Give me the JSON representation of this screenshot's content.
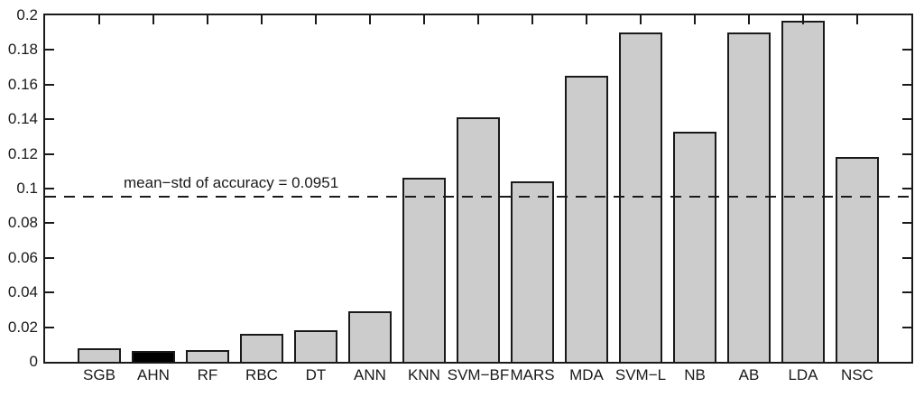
{
  "chart_data": {
    "type": "bar",
    "title": "",
    "xlabel": "",
    "ylabel": "",
    "categories": [
      "SGB",
      "AHN",
      "RF",
      "RBC",
      "DT",
      "ANN",
      "KNN",
      "SVM−BF",
      "MARS",
      "MDA",
      "SVM−L",
      "NB",
      "AB",
      "LDA",
      "NSC"
    ],
    "values": [
      0.008,
      0.006,
      0.007,
      0.016,
      0.018,
      0.029,
      0.106,
      0.141,
      0.104,
      0.165,
      0.19,
      0.133,
      0.19,
      0.197,
      0.118
    ],
    "bar_colors": [
      "#cccccc",
      "#000000",
      "#cccccc",
      "#cccccc",
      "#cccccc",
      "#cccccc",
      "#cccccc",
      "#cccccc",
      "#cccccc",
      "#cccccc",
      "#cccccc",
      "#cccccc",
      "#cccccc",
      "#cccccc",
      "#cccccc"
    ],
    "bar_edge_color": "#1a1a1a",
    "default_bar_color": "#cccccc",
    "highlighted_bar": "AHN",
    "ylim": [
      0,
      0.2
    ],
    "xlim_units": [
      0,
      16
    ],
    "bar_width_fraction": 0.8,
    "yticks": [
      0,
      0.02,
      0.04,
      0.06,
      0.08,
      0.1,
      0.12,
      0.14,
      0.16,
      0.18,
      0.2
    ],
    "ytick_labels": [
      "0",
      "0.02",
      "0.04",
      "0.06",
      "0.08",
      "0.1",
      "0.12",
      "0.14",
      "0.16",
      "0.18",
      "0.2"
    ],
    "grid": false,
    "legend": null,
    "axis_color": "#1a1a1a",
    "background": "#ffffff",
    "reference_line": {
      "value": 0.0951,
      "style": "dashed",
      "color": "#1a1a1a",
      "label": "mean−std of accuracy = 0.0951"
    }
  }
}
